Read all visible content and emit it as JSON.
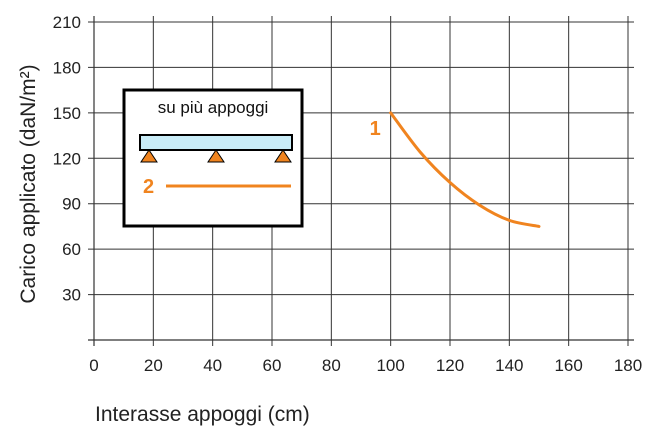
{
  "chart_data": {
    "type": "line",
    "xlabel": "Interasse appoggi (cm)",
    "ylabel": "Carico applicato (daN/m²)",
    "xlim": [
      0,
      180
    ],
    "ylim": [
      0,
      210
    ],
    "x_ticks": [
      0,
      20,
      40,
      60,
      80,
      100,
      120,
      140,
      160,
      180
    ],
    "y_ticks": [
      30,
      60,
      90,
      120,
      150,
      180,
      210
    ],
    "grid": true,
    "series": [
      {
        "name": "1",
        "color": "#f0841f",
        "x": [
          100,
          110,
          120,
          130,
          140,
          150
        ],
        "y": [
          150,
          124,
          104,
          89,
          79,
          75
        ]
      }
    ],
    "inset": {
      "title": "su più appoggi",
      "legend_entry": "2",
      "legend_color": "#f0841f",
      "beam_color": "#c9ecf7",
      "support_color": "#f0841f",
      "support_count": 3
    }
  }
}
